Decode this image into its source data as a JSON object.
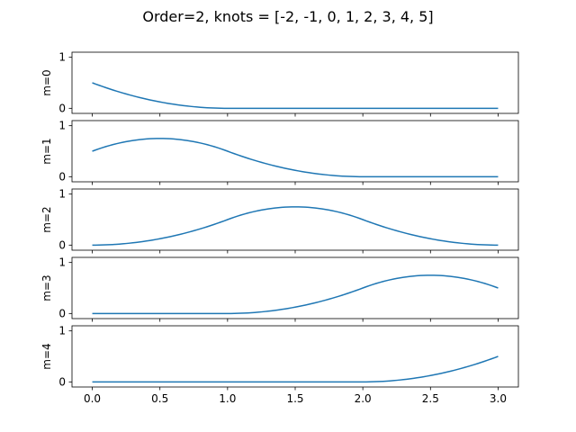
{
  "chart_data": {
    "type": "line",
    "title": "Order=2, knots = [-2, -1, 0, 1, 2, 3, 4, 5]",
    "xlim": [
      -0.15,
      3.15
    ],
    "ylim": [
      -0.1,
      1.1
    ],
    "xticks": [
      "0.0",
      "0.5",
      "1.0",
      "1.5",
      "2.0",
      "2.5",
      "3.0"
    ],
    "xtick_values": [
      0,
      0.5,
      1,
      1.5,
      2,
      2.5,
      3
    ],
    "yticks": [
      "0",
      "1"
    ],
    "ytick_values": [
      0,
      1
    ],
    "line_color": "#1f77b4",
    "panels": [
      {
        "ylabel": "m=0",
        "x": [
          0,
          0.5,
          1,
          1.5,
          2,
          2.5,
          3
        ],
        "y": [
          0.5,
          0.125,
          0,
          0,
          0,
          0,
          0
        ]
      },
      {
        "ylabel": "m=1",
        "x": [
          0,
          0.5,
          1,
          1.5,
          2,
          2.5,
          3
        ],
        "y": [
          0.5,
          0.75,
          0.5,
          0.125,
          0,
          0,
          0
        ]
      },
      {
        "ylabel": "m=2",
        "x": [
          0,
          0.5,
          1,
          1.5,
          2,
          2.5,
          3
        ],
        "y": [
          0,
          0.125,
          0.5,
          0.75,
          0.5,
          0.125,
          0
        ]
      },
      {
        "ylabel": "m=3",
        "x": [
          0,
          0.5,
          1,
          1.5,
          2,
          2.5,
          3
        ],
        "y": [
          0,
          0,
          0,
          0.125,
          0.5,
          0.75,
          0.5
        ]
      },
      {
        "ylabel": "m=4",
        "x": [
          0,
          0.5,
          1,
          1.5,
          2,
          2.5,
          3
        ],
        "y": [
          0,
          0,
          0,
          0,
          0,
          0.125,
          0.5
        ]
      }
    ]
  }
}
